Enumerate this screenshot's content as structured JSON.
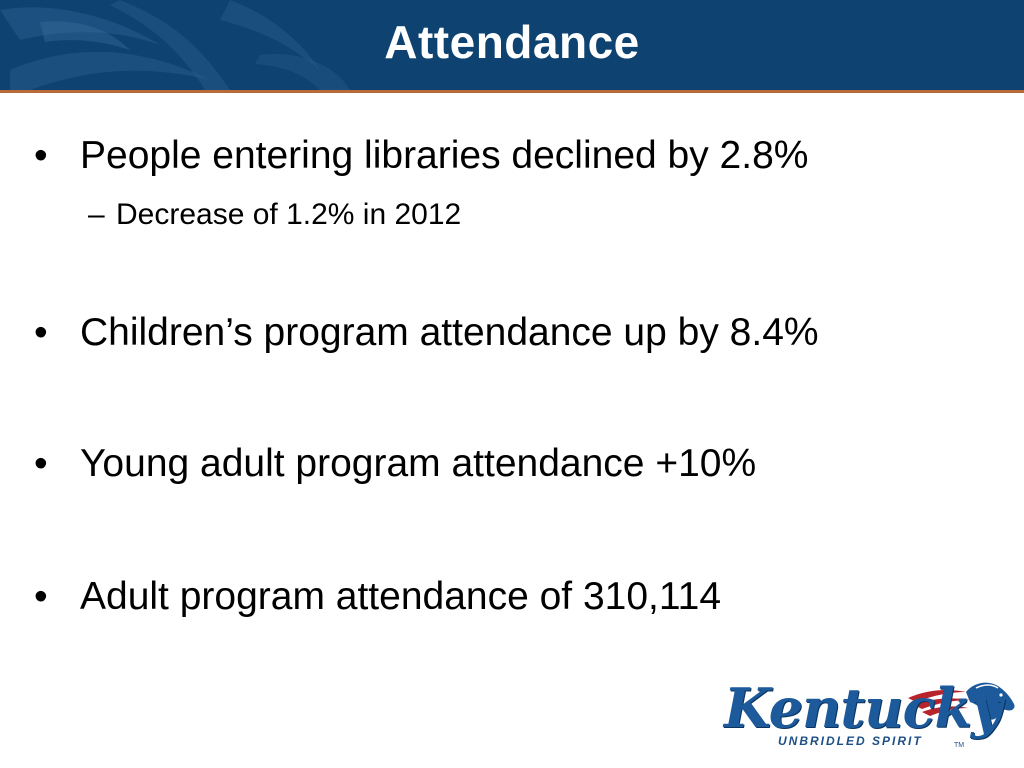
{
  "slide": {
    "title": "Attendance",
    "colors": {
      "header_background": "#0d4271",
      "header_rule": "#b86a3a",
      "title_text": "#ffffff",
      "body_text": "#000000",
      "logo_blue": "#1d5a9c",
      "logo_red": "#b8242c"
    },
    "bullets": [
      {
        "marker": "•",
        "text": "People entering libraries declined by 2.8%",
        "sub_items": [
          {
            "marker": "–",
            "text": "Decrease of 1.2% in 2012"
          }
        ]
      },
      {
        "marker": "•",
        "text": "Children’s program attendance up by 8.4%",
        "sub_items": []
      },
      {
        "marker": "•",
        "text": "Young adult program attendance +10%",
        "sub_items": []
      },
      {
        "marker": "•",
        "text": "Adult program attendance of 310,114",
        "sub_items": []
      }
    ],
    "logo": {
      "wordmark": "Kentucky",
      "tagline": "UNBRIDLED SPIRIT",
      "trademark": "TM",
      "icon": "horse-head-icon"
    }
  }
}
